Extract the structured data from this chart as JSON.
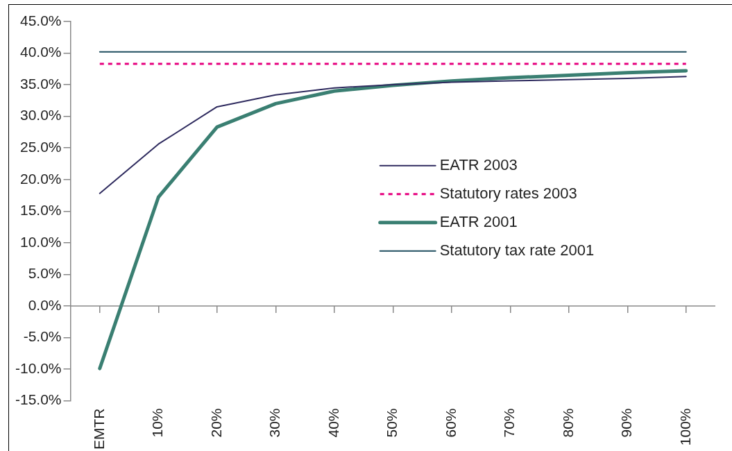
{
  "chart_data": {
    "type": "line",
    "categories": [
      "EMTR",
      "10%",
      "20%",
      "30%",
      "40%",
      "50%",
      "60%",
      "70%",
      "80%",
      "90%",
      "100%"
    ],
    "series": [
      {
        "name": "EATR 2003",
        "color": "#2e2a5e",
        "values": [
          17.8,
          25.6,
          31.5,
          33.4,
          34.5,
          35.0,
          35.4,
          35.6,
          35.8,
          36.0,
          36.3
        ]
      },
      {
        "name": "Statutory rates 2003",
        "color": "#e6007e",
        "line_style": "dashed",
        "values": [
          38.3,
          38.3,
          38.3,
          38.3,
          38.3,
          38.3,
          38.3,
          38.3,
          38.3,
          38.3,
          38.3
        ]
      },
      {
        "name": "EATR 2001",
        "color": "#3a7f72",
        "values": [
          -9.9,
          17.2,
          28.3,
          32.0,
          34.0,
          34.9,
          35.6,
          36.1,
          36.5,
          36.9,
          37.2
        ]
      },
      {
        "name": "Statutory tax rate 2001",
        "color": "#1f4e5f",
        "values": [
          40.2,
          40.2,
          40.2,
          40.2,
          40.2,
          40.2,
          40.2,
          40.2,
          40.2,
          40.2,
          40.2
        ]
      }
    ],
    "ylim": [
      -15,
      45
    ],
    "yticks": [
      {
        "value": -15,
        "label": "-15.0%"
      },
      {
        "value": -10,
        "label": "-10.0%"
      },
      {
        "value": -5,
        "label": "-5.0%"
      },
      {
        "value": 0,
        "label": "0.0%"
      },
      {
        "value": 5,
        "label": "5.0%"
      },
      {
        "value": 10,
        "label": "10.0%"
      },
      {
        "value": 15,
        "label": "15.0%"
      },
      {
        "value": 20,
        "label": "20.0%"
      },
      {
        "value": 25,
        "label": "25.0%"
      },
      {
        "value": 30,
        "label": "30.0%"
      },
      {
        "value": 35,
        "label": "35.0%"
      },
      {
        "value": 40,
        "label": "40.0%"
      },
      {
        "value": 45,
        "label": "45.0%"
      }
    ],
    "ref_lines": [
      {
        "axis": "y",
        "value": 0,
        "color": "#888888"
      }
    ],
    "grid": false,
    "legend": "right",
    "marker": "none",
    "line_style": "solid"
  }
}
